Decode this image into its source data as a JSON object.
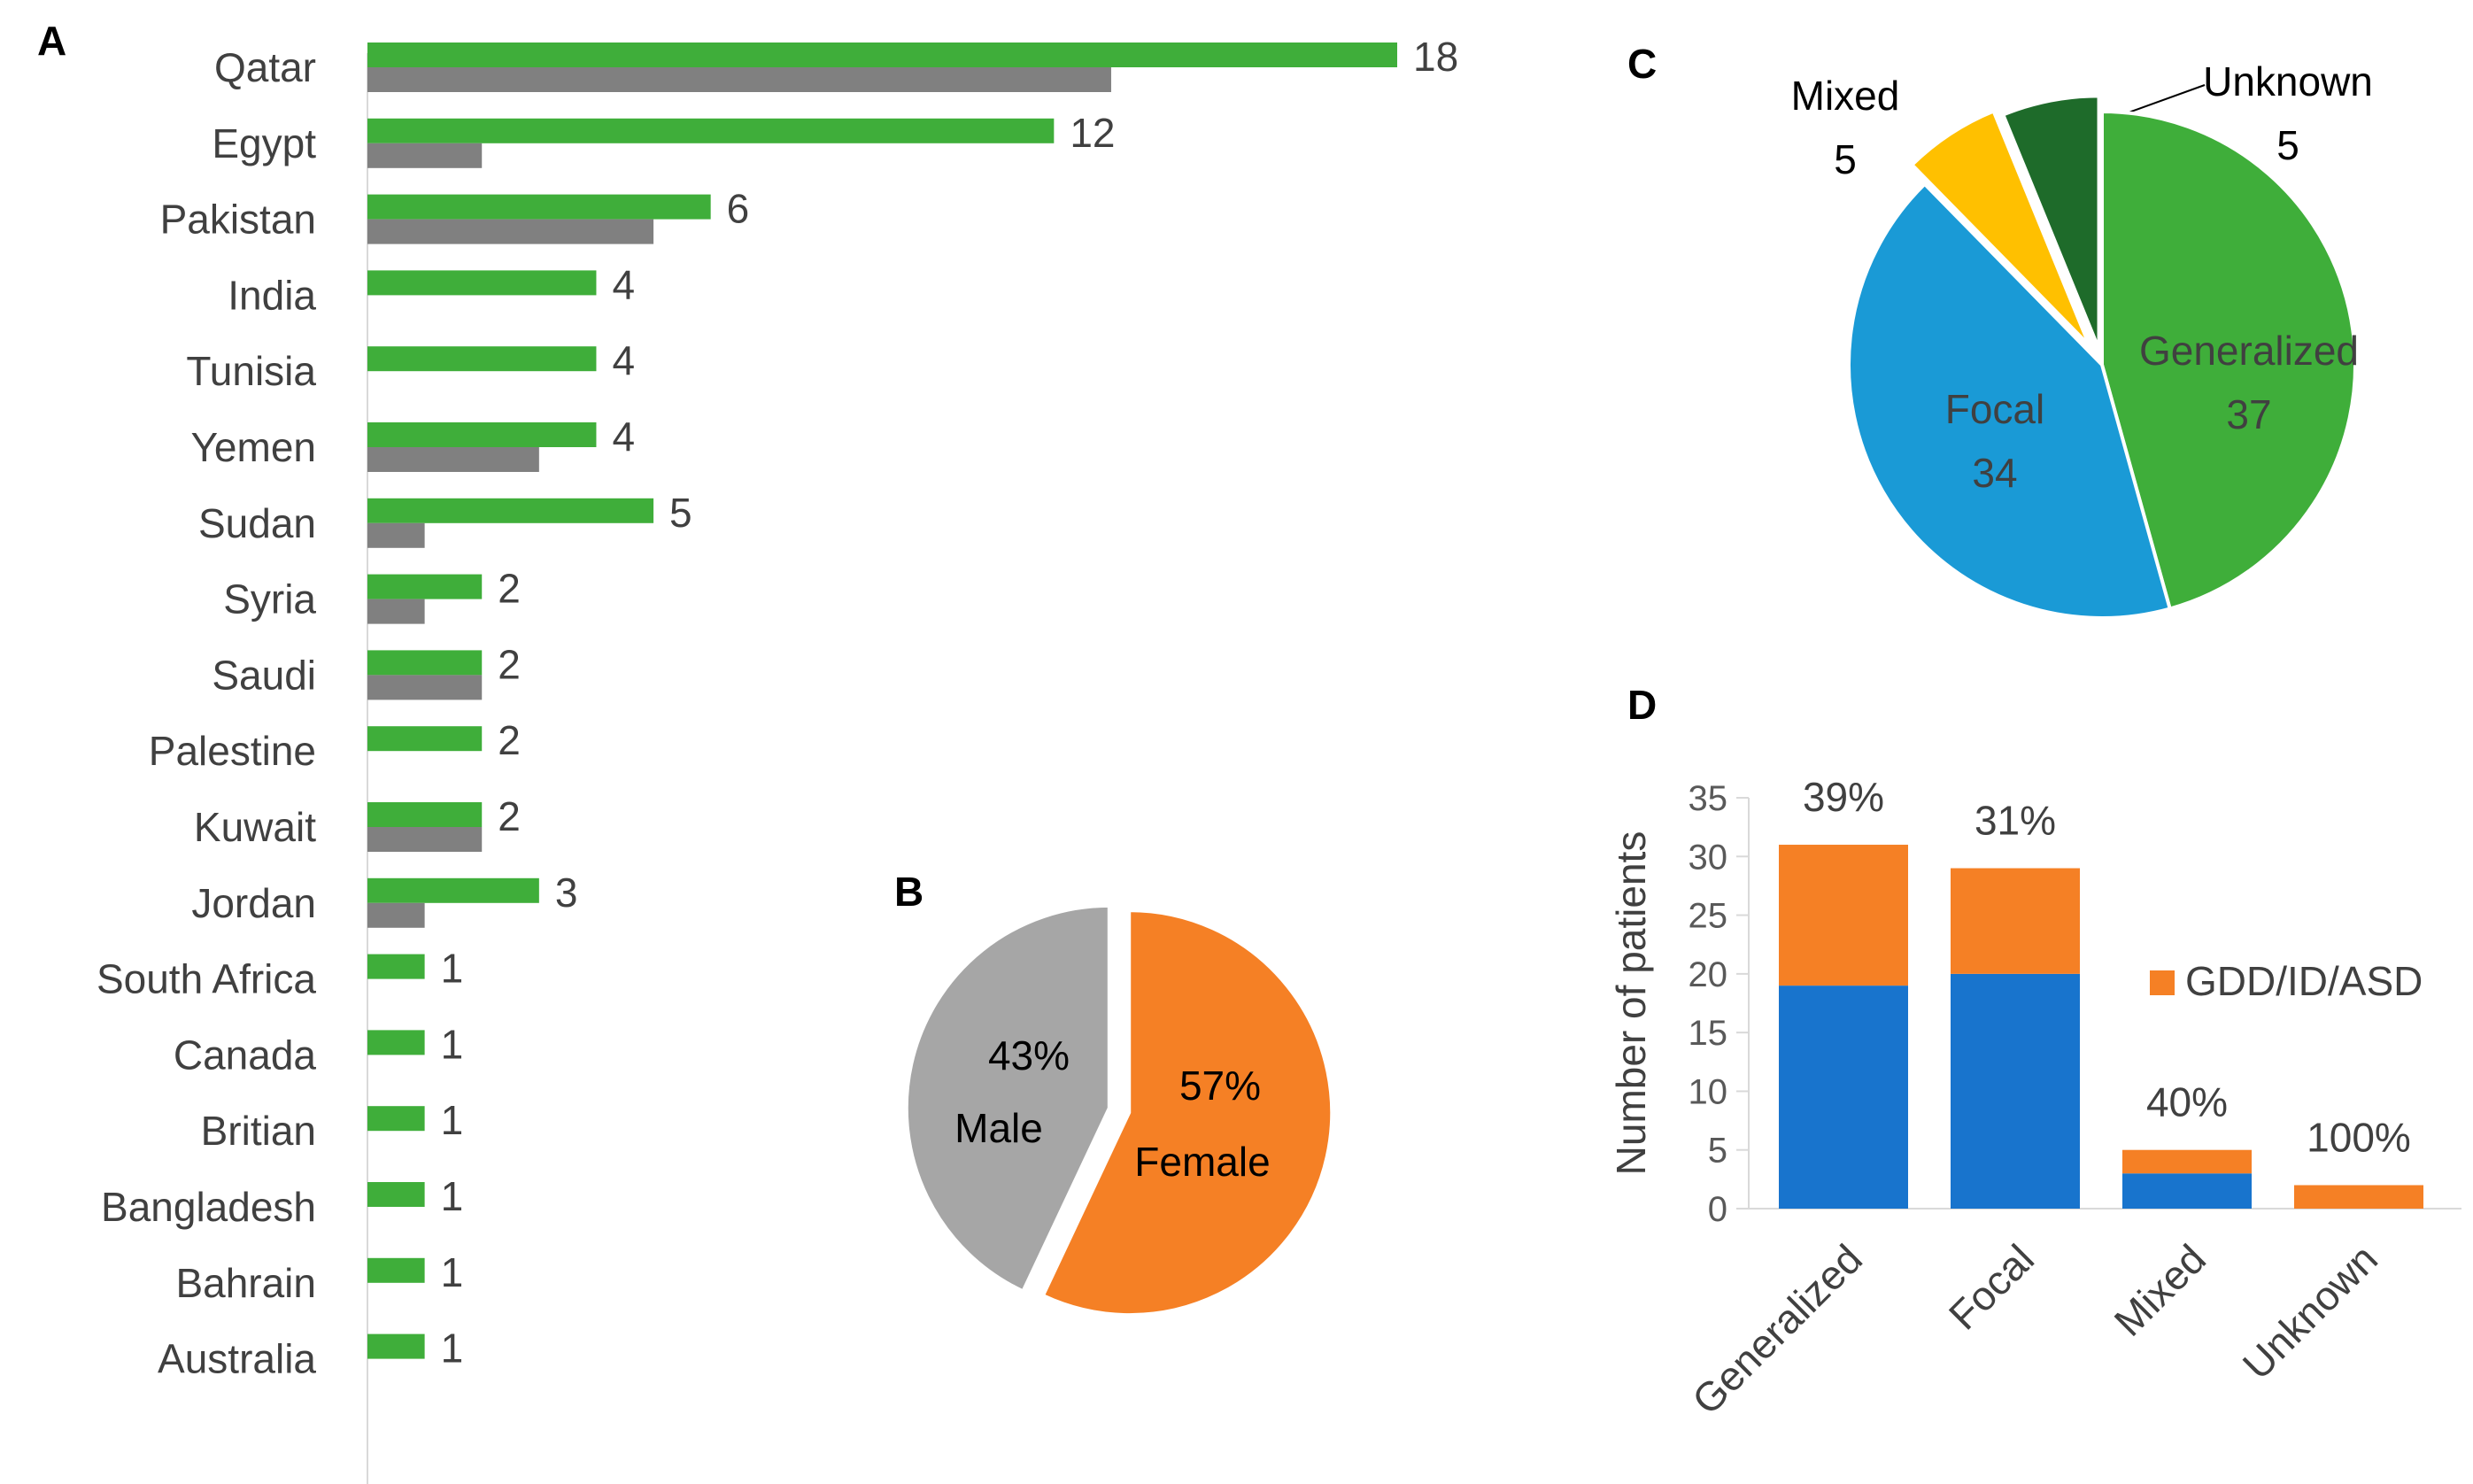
{
  "panels": {
    "a": "A",
    "b": "B",
    "c": "C",
    "d": "D"
  },
  "chart_data": [
    {
      "id": "A",
      "type": "bar",
      "orientation": "horizontal",
      "categories": [
        "Qatar",
        "Egypt",
        "Pakistan",
        "India",
        "Tunisia",
        "Yemen",
        "Sudan",
        "Syria",
        "Saudi",
        "Palestine",
        "Kuwait",
        "Jordan",
        "South Africa",
        "Canada",
        "Britian",
        "Bangladesh",
        "Bahrain",
        "Australia"
      ],
      "series": [
        {
          "name": "green",
          "color": "#3fae3a",
          "values": [
            18,
            12,
            6,
            4,
            4,
            4,
            5,
            2,
            2,
            2,
            2,
            3,
            1,
            1,
            1,
            1,
            1,
            1
          ]
        },
        {
          "name": "grey",
          "color": "#808080",
          "values": [
            13,
            2,
            5,
            0,
            0,
            3,
            1,
            1,
            2,
            0,
            2,
            1,
            0,
            0,
            0,
            0,
            0,
            0
          ]
        }
      ],
      "data_labels": [
        "18",
        "12",
        "6",
        "4",
        "4",
        "4",
        "5",
        "2",
        "2",
        "2",
        "2",
        "3",
        "1",
        "1",
        "1",
        "1",
        "1",
        "1"
      ],
      "xlim": [
        0,
        18
      ]
    },
    {
      "id": "B",
      "type": "pie",
      "slices": [
        {
          "label": "Female",
          "value": 57,
          "pct": "57%",
          "color": "#f58025"
        },
        {
          "label": "Male",
          "value": 43,
          "pct": "43%",
          "color": "#a6a6a6"
        }
      ]
    },
    {
      "id": "C",
      "type": "pie",
      "slices": [
        {
          "label": "Generalized",
          "value": 37,
          "value_label": "37",
          "color": "#3fae3a"
        },
        {
          "label": "Focal",
          "value": 34,
          "value_label": "34",
          "color": "#1a9ad6"
        },
        {
          "label": "Mixed",
          "value": 5,
          "value_label": "5",
          "color": "#ffc000"
        },
        {
          "label": "Unknown",
          "value": 5,
          "value_label": "5",
          "color": "#1e6b2a"
        }
      ]
    },
    {
      "id": "D",
      "type": "bar",
      "stacked": true,
      "categories": [
        "Generalized",
        "Focal",
        "Mixed",
        "Unknown"
      ],
      "series": [
        {
          "name": "",
          "color": "#1874cd",
          "values": [
            19,
            20,
            3,
            0
          ]
        },
        {
          "name": "GDD/ID/ASD",
          "color": "#f58025",
          "values": [
            12,
            9,
            2,
            2
          ]
        }
      ],
      "percent_labels": [
        "39%",
        "31%",
        "40%",
        "100%"
      ],
      "ylabel": "Number of patients",
      "ylim": [
        0,
        35
      ],
      "yticks": [
        "0",
        "5",
        "10",
        "15",
        "20",
        "25",
        "30",
        "35"
      ],
      "legend": "GDD/ID/ASD"
    }
  ]
}
